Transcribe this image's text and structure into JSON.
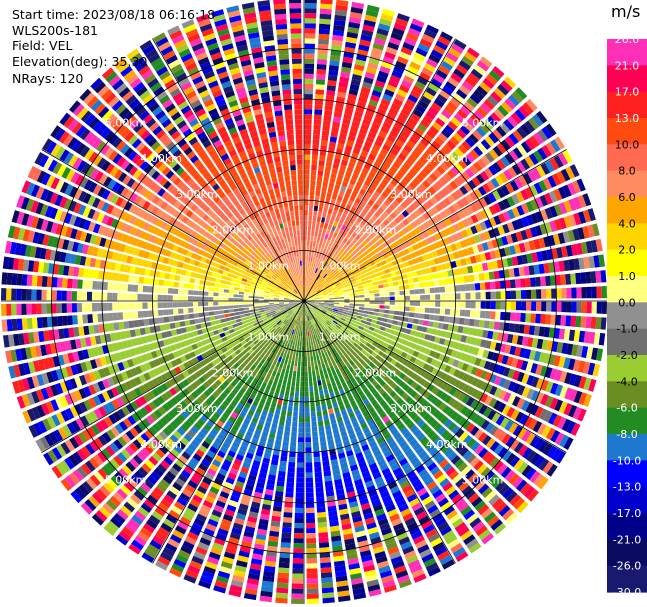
{
  "header": {
    "start_time": "Start time: 2023/08/18 06:16:18",
    "instrument": "WLS200s-181",
    "field": "Field: VEL",
    "elevation": "Elevation(deg): 35.30",
    "nrays": "NRays: 120"
  },
  "colorbar": {
    "unit": "m/s",
    "ticks": [
      "26.0",
      "21.0",
      "17.0",
      "13.0",
      "10.0",
      "8.0",
      "6.0",
      "4.0",
      "2.0",
      "1.0",
      "0.0",
      "-1.0",
      "-2.0",
      "-4.0",
      "-6.0",
      "-8.0",
      "-10.0",
      "-13.0",
      "-17.0",
      "-21.0",
      "-26.0",
      "-30.0"
    ],
    "colors": [
      "#ff2fb8",
      "#ff0055",
      "#ff2020",
      "#ff4a10",
      "#ff6a50",
      "#ff8c60",
      "#ffa500",
      "#ffd500",
      "#ffff00",
      "#ffff80",
      "#909090",
      "#707070",
      "#9acd32",
      "#6b8e23",
      "#228b22",
      "#1e78d0",
      "#0000ff",
      "#0000cc",
      "#00008b",
      "#0a0a60",
      "#191970"
    ]
  },
  "chart_data": {
    "type": "heatmap",
    "projection": "polar PPI",
    "field": "VEL",
    "nrays": 120,
    "range_rings_km": [
      1.0,
      2.0,
      3.0,
      4.0,
      5.0
    ],
    "ring_labels": [
      "1.00km",
      "2.00km",
      "3.00km",
      "4.00km",
      "5.00km"
    ],
    "max_range_km": 6.0,
    "value_range": [
      -30.0,
      26.0
    ],
    "unit": "m/s",
    "velocity_pattern": {
      "north_sector": "positive 4 to 13 m/s (orange/red) within ~3.5 km",
      "south_sector": "negative -4 to -10 m/s (green/blue) within ~3.5 km",
      "east_west_band": "near zero (gray)",
      "beyond_4km": "noise, random values across full scale"
    }
  }
}
